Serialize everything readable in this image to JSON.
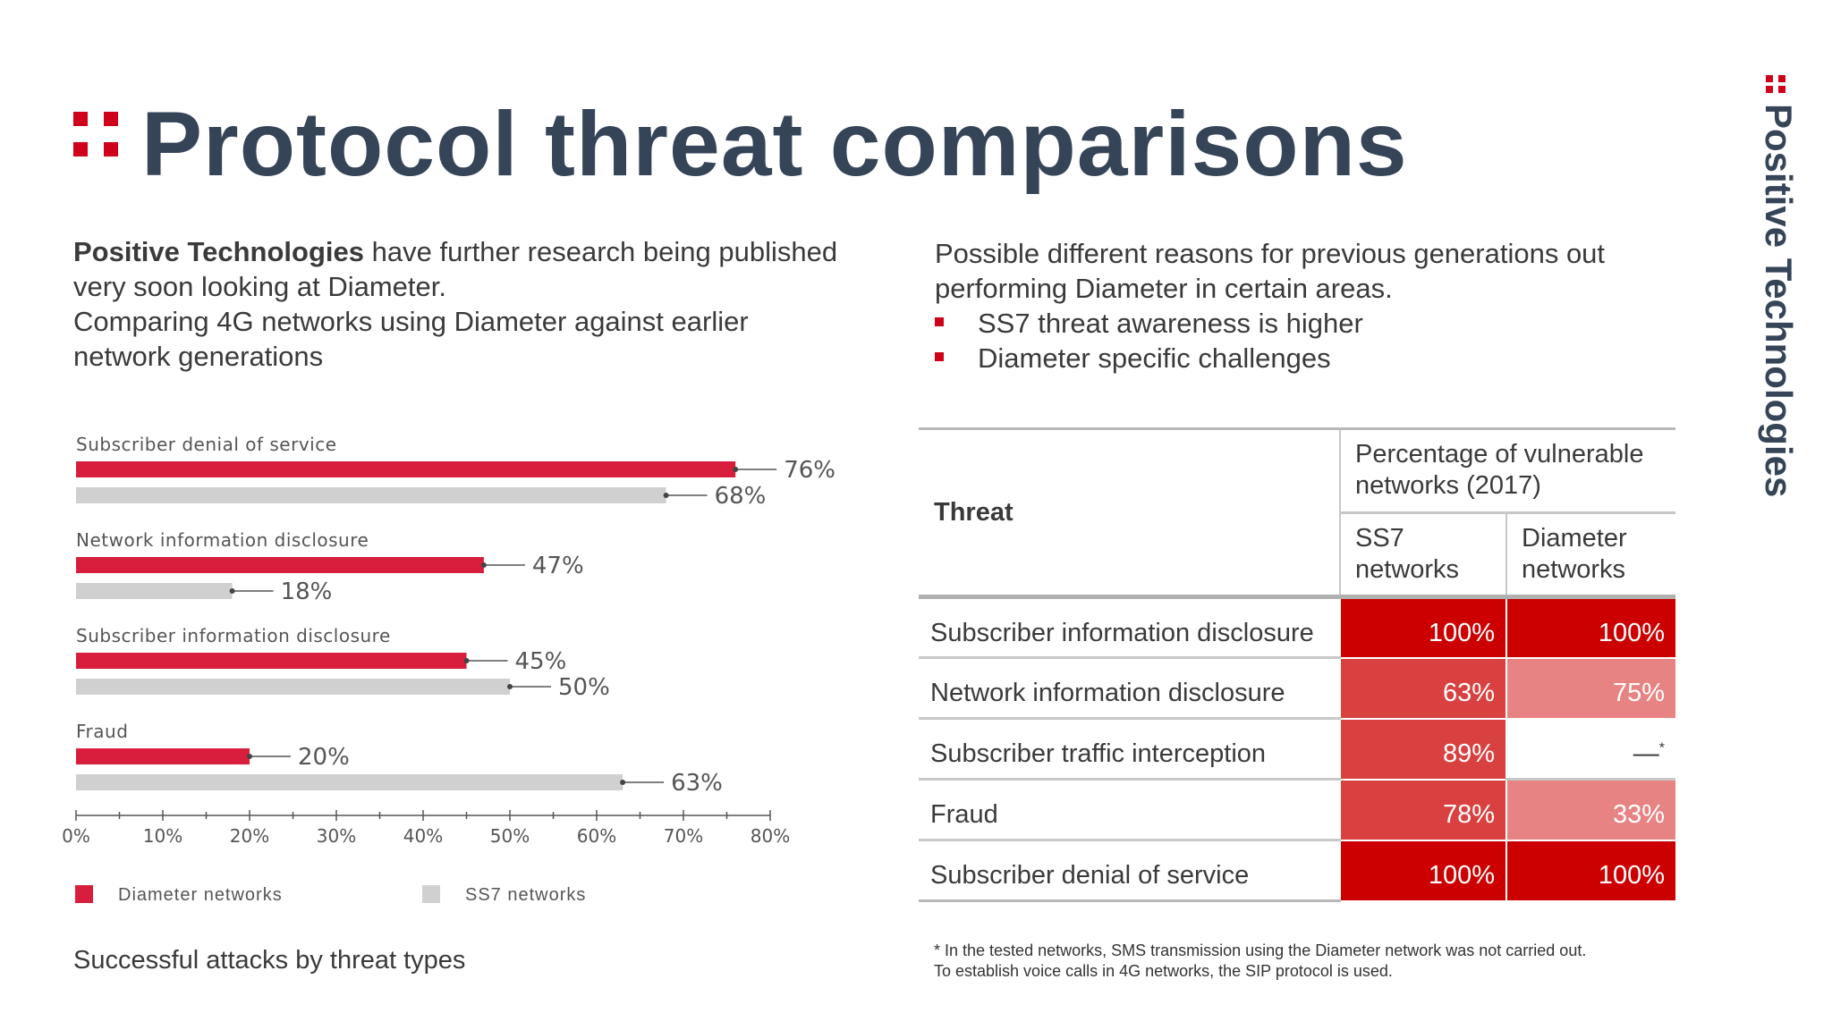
{
  "title": "Protocol threat comparisons",
  "brand": "Positive Technologies",
  "colors": {
    "accent": "#d0021b",
    "title": "#364458",
    "ss7_bar": "#d0d0d0",
    "diameter_bar": "#d81e3c"
  },
  "intro_left": {
    "brand": "Positive Technologies",
    "line1_rest": " have further research being published very soon looking at Diameter.",
    "line2": "Comparing 4G networks using Diameter against earlier network generations"
  },
  "intro_right": {
    "text": "Possible different reasons for previous generations out performing Diameter in certain areas.",
    "bullets": [
      "SS7 threat awareness is higher",
      "Diameter specific challenges"
    ]
  },
  "chart_caption": "Successful attacks by threat types",
  "chart_data": {
    "type": "bar",
    "orientation": "horizontal",
    "categories": [
      "Subscriber denial of service",
      "Network information disclosure",
      "Subscriber information disclosure",
      "Fraud"
    ],
    "series": [
      {
        "name": "Diameter networks",
        "values": [
          76,
          47,
          45,
          20
        ],
        "color": "#d81e3c"
      },
      {
        "name": "SS7 networks",
        "values": [
          68,
          18,
          50,
          63
        ],
        "color": "#d0d0d0"
      }
    ],
    "xlim": [
      0,
      80
    ],
    "xticks": [
      "0%",
      "10%",
      "20%",
      "30%",
      "40%",
      "50%",
      "60%",
      "70%",
      "80%"
    ],
    "value_suffix": "%",
    "legend": "bottom"
  },
  "table": {
    "headers": {
      "threat": "Threat",
      "percentage": "Percentage of vulnerable networks (2017)",
      "ss7": "SS7 networks",
      "diameter": "Diameter networks"
    },
    "rows": [
      {
        "threat": "Subscriber information disclosure",
        "ss7": "100%",
        "diameter": "100%",
        "ss7_color": "#cc0000",
        "diameter_color": "#cc0000"
      },
      {
        "threat": "Network information disclosure",
        "ss7": "63%",
        "diameter": "75%",
        "ss7_color": "#d94141",
        "diameter_color": "#e88383"
      },
      {
        "threat": "Subscriber traffic interception",
        "ss7": "89%",
        "diameter": "—",
        "diameter_mark": "*",
        "ss7_color": "#d94141",
        "diameter_color": "#ffffff"
      },
      {
        "threat": "Fraud",
        "ss7": "78%",
        "diameter": "33%",
        "ss7_color": "#d94141",
        "diameter_color": "#e88383"
      },
      {
        "threat": "Subscriber denial of service",
        "ss7": "100%",
        "diameter": "100%",
        "ss7_color": "#cc0000",
        "diameter_color": "#cc0000"
      }
    ]
  },
  "footnote": {
    "line1": "* In the tested networks, SMS transmission using the Diameter network was not carried out.",
    "line2": "To establish voice calls in 4G networks, the SIP protocol is used."
  }
}
